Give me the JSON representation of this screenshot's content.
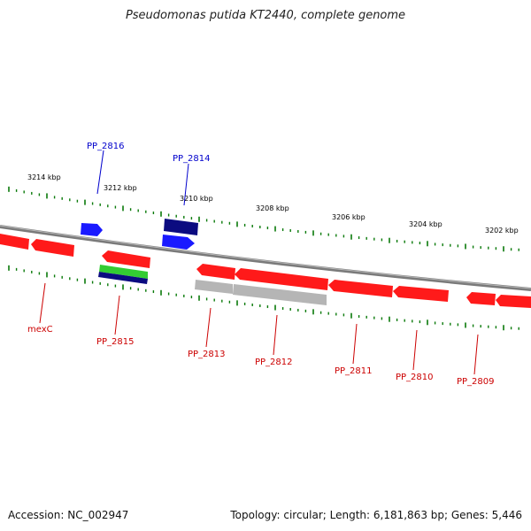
{
  "title": "Pseudomonas putida KT2440, complete genome",
  "footer": {
    "accession": "Accession: NC_002947",
    "summary": "Topology: circular; Length: 6,181,863 bp; Genes: 5,446"
  },
  "ruler": {
    "ticks": [
      {
        "label": "3214 kbp"
      },
      {
        "label": "3212 kbp"
      },
      {
        "label": "3210 kbp"
      },
      {
        "label": "3208 kbp"
      },
      {
        "label": "3206 kbp"
      },
      {
        "label": "3204 kbp"
      },
      {
        "label": "3202 kbp"
      }
    ]
  },
  "colors": {
    "backbone": "#808080",
    "gene_red": "#ff1a1a",
    "gene_blue": "#1a1aff",
    "gene_navy": "#0b0b80",
    "gene_green": "#33cc33",
    "gene_grey": "#b5b5b5",
    "tick_green": "#0a7a0a",
    "label_blue": "#0000cc",
    "label_red": "#cc0000"
  },
  "genes": {
    "top": [
      {
        "name": "PP_2816",
        "color": "blue"
      },
      {
        "name": "PP_2814",
        "color": "blue"
      }
    ],
    "bottom": [
      {
        "name": "mexC"
      },
      {
        "name": "PP_2815"
      },
      {
        "name": "PP_2813"
      },
      {
        "name": "PP_2812"
      },
      {
        "name": "PP_2811"
      },
      {
        "name": "PP_2810"
      },
      {
        "name": "PP_2809"
      }
    ]
  }
}
